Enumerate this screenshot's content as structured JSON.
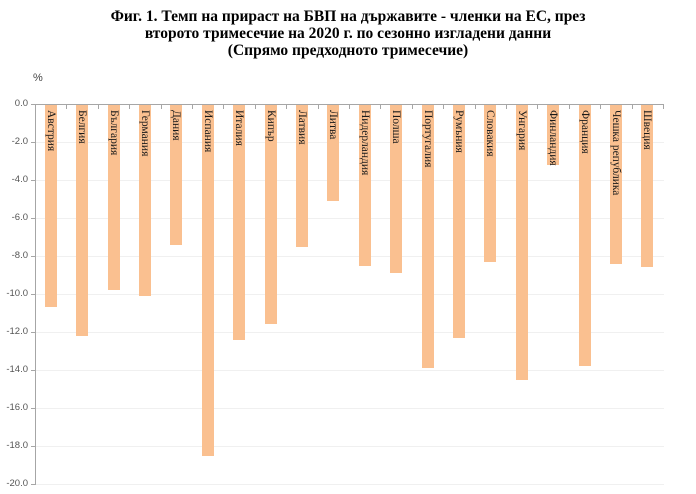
{
  "chart_data": {
    "type": "bar",
    "title": "Фиг. 1. Темп на прираст на БВП на държавите - членки на ЕС, през второто тримесечие на 2020 г. по сезонно изгладени данни (Спрямо предходното тримесечие)",
    "title_lines": [
      "Фиг. 1. Темп на прираст на БВП на държавите - членки на ЕС, през",
      "второто тримесечие на 2020 г. по сезонно изгладени данни",
      "(Спрямо предходното тримесечие)"
    ],
    "xlabel": "",
    "ylabel": "%",
    "ylim": [
      -20.0,
      0.0
    ],
    "yticks": [
      "0.0",
      "-2.0",
      "-4.0",
      "-6.0",
      "-8.0",
      "-10.0",
      "-12.0",
      "-14.0",
      "-16.0",
      "-18.0",
      "-20.0"
    ],
    "grid": true,
    "legend": null,
    "bar_color": "#fac090",
    "categories": [
      "Австрия",
      "Белгия",
      "България",
      "Германия",
      "Дания",
      "Испания",
      "Италия",
      "Кипър",
      "Латвия",
      "Литва",
      "Нидерландия",
      "Полша",
      "Португалия",
      "Румъния",
      "Словакия",
      "Унгария",
      "Финландия",
      "Франция",
      "Чешка република",
      "Швеция"
    ],
    "values": [
      -10.7,
      -12.2,
      -9.8,
      -10.1,
      -7.4,
      -18.5,
      -12.4,
      -11.6,
      -7.5,
      -5.1,
      -8.5,
      -8.9,
      -13.9,
      -12.3,
      -8.3,
      -14.5,
      -3.2,
      -13.8,
      -8.4,
      -8.6
    ]
  }
}
